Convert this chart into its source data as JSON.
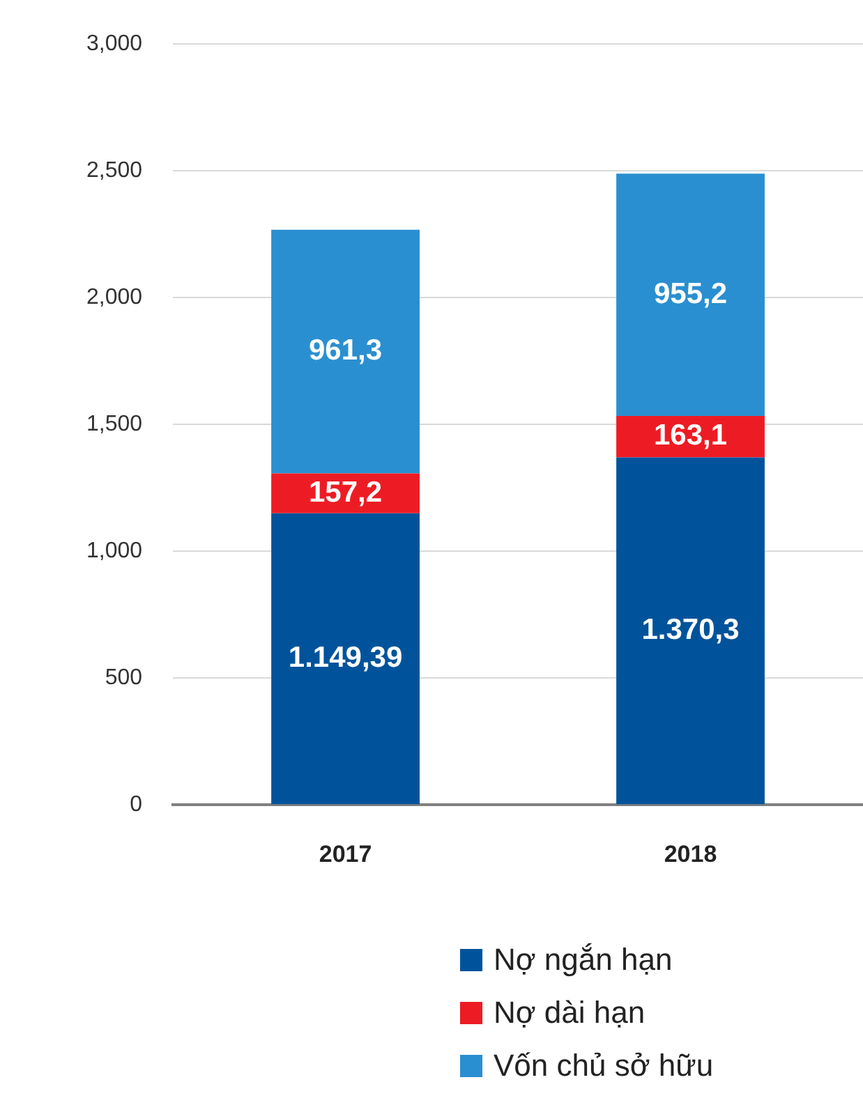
{
  "chart_data": {
    "type": "bar",
    "stacked": true,
    "categories": [
      "2017",
      "2018"
    ],
    "series": [
      {
        "name": "Nợ ngắn hạn",
        "color": "#00539b",
        "values": [
          1149.39,
          1370.3
        ],
        "value_labels": [
          "1.149,39",
          "1.370,3"
        ]
      },
      {
        "name": "Nợ dài hạn",
        "color": "#ed1c24",
        "values": [
          157.2,
          163.1
        ],
        "value_labels": [
          "157,2",
          "163,1"
        ]
      },
      {
        "name": "Vốn chủ sở hữu",
        "color": "#2a8fd0",
        "values": [
          961.3,
          955.2
        ],
        "value_labels": [
          "961,3",
          "955,2"
        ]
      }
    ],
    "ylim": [
      0,
      3000
    ],
    "yticks": [
      {
        "value": 0,
        "label": "0"
      },
      {
        "value": 500,
        "label": "500"
      },
      {
        "value": 1000,
        "label": "1,000"
      },
      {
        "value": 1500,
        "label": "1,500"
      },
      {
        "value": 2000,
        "label": "2,000"
      },
      {
        "value": 2500,
        "label": "2,500"
      },
      {
        "value": 3000,
        "label": "3,000"
      }
    ],
    "grid": "y",
    "legend": "bottom"
  }
}
